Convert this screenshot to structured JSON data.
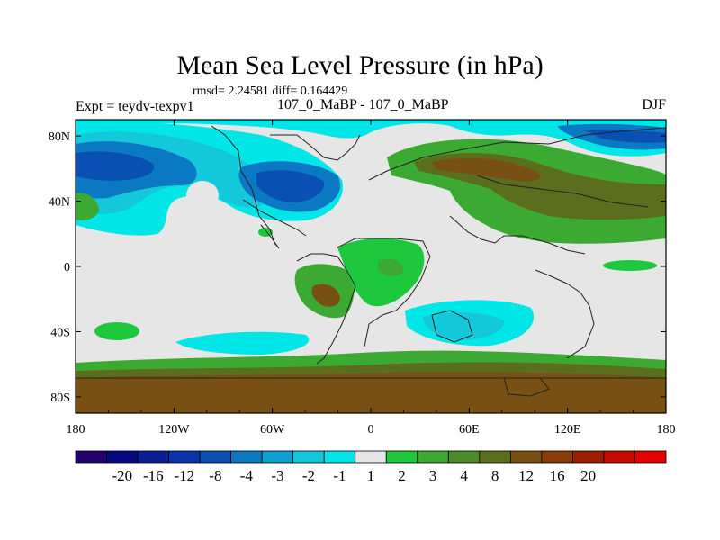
{
  "header": {
    "title": "Mean Sea Level Pressure (in hPa)",
    "stats": "rmsd= 2.24581 diff= 0.164429",
    "experiment": "Expt = teydv-texpv1",
    "period": "107_0_MaBP - 107_0_MaBP",
    "season": "DJF"
  },
  "axes": {
    "lon_labels": [
      "180",
      "120W",
      "60W",
      "0",
      "60E",
      "120E",
      "180"
    ],
    "lat_labels": [
      "80N",
      "40N",
      "0",
      "40S",
      "80S"
    ]
  },
  "colorbar": {
    "colors": [
      "#23006e",
      "#050a82",
      "#0a1e96",
      "#0a32aa",
      "#0a50b4",
      "#0a78c3",
      "#0aa0d2",
      "#14c8dc",
      "#00e6e6",
      "#e6e6e6",
      "#1ec83c",
      "#3caa32",
      "#4b8c28",
      "#5a6e1e",
      "#785014",
      "#8c3c0a",
      "#a01e00",
      "#c80a00",
      "#e60000"
    ],
    "labels": [
      "-20",
      "-16",
      "-12",
      "-8",
      "-4",
      "-3",
      "-2",
      "-1",
      "1",
      "2",
      "3",
      "4",
      "8",
      "12",
      "16",
      "20"
    ]
  },
  "map_data": {
    "variable": "Mean Sea Level Pressure difference",
    "units": "hPa",
    "levels": [
      -20,
      -16,
      -12,
      -8,
      -4,
      -3,
      -2,
      -1,
      1,
      2,
      3,
      4,
      8,
      12,
      16,
      20
    ]
  }
}
